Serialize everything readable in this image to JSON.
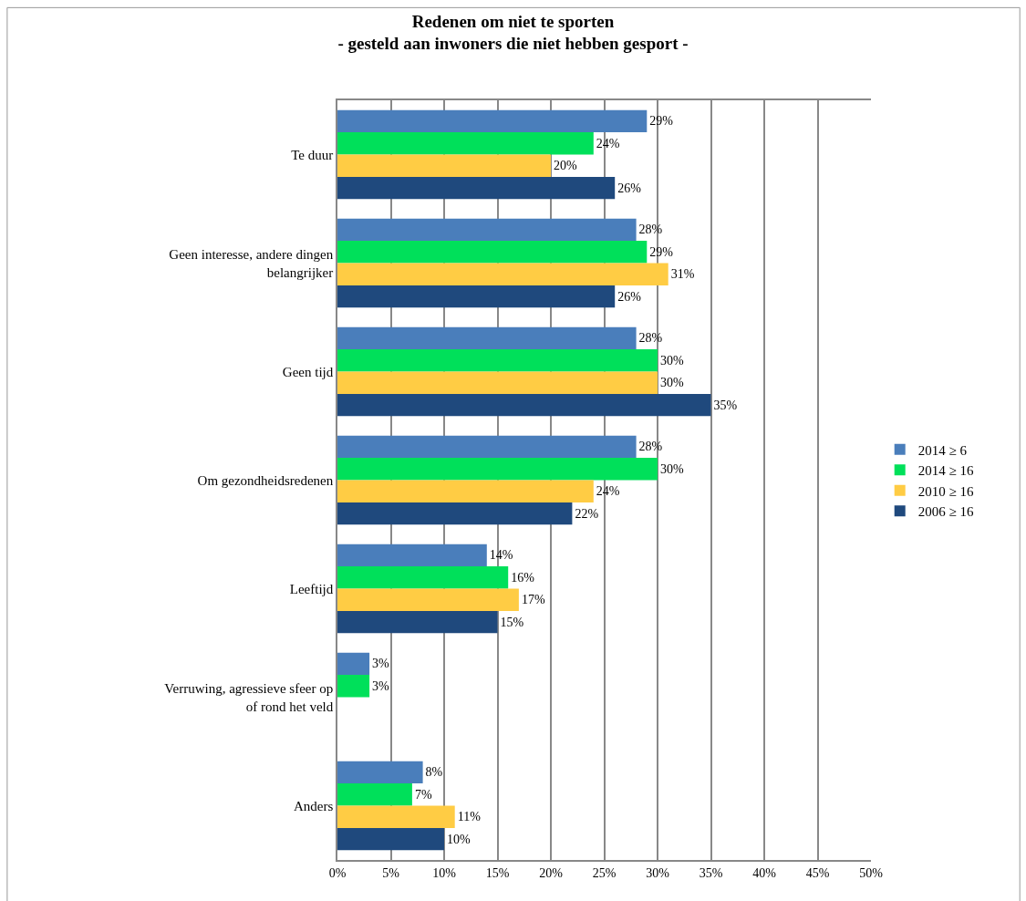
{
  "chart_data": {
    "type": "bar",
    "orientation": "horizontal",
    "title": "Redenen om niet te sporten",
    "subtitle": "- gesteld aan inwoners die niet hebben gesport -",
    "categories": [
      "Te duur",
      "Geen interesse, andere dingen belangrijker",
      "Geen tijd",
      "Om gezondheidsredenen",
      "Leeftijd",
      "Verruwing, agressieve sfeer op of rond het veld",
      "Anders"
    ],
    "series": [
      {
        "name": "2014 ≥ 6",
        "color": "#4a7ebb",
        "values": [
          29,
          28,
          28,
          28,
          14,
          3,
          8
        ],
        "value_labels": [
          "29%",
          "28%",
          "28%",
          "28%",
          "14%",
          "3%",
          "8%"
        ]
      },
      {
        "name": "2014 ≥ 16",
        "color": "#00e05a",
        "values": [
          24,
          29,
          30,
          30,
          16,
          3,
          7
        ],
        "value_labels": [
          "24%",
          "29%",
          "30%",
          "30%",
          "16%",
          "3%",
          "7%"
        ]
      },
      {
        "name": "2010 ≥ 16",
        "color": "#ffcc44",
        "values": [
          20,
          31,
          30,
          24,
          17,
          null,
          11
        ],
        "value_labels": [
          "20%",
          "31%",
          "30%",
          "24%",
          "17%",
          null,
          "11%"
        ]
      },
      {
        "name": "2006 ≥ 16",
        "color": "#1f497d",
        "values": [
          26,
          26,
          35,
          22,
          15,
          null,
          10
        ],
        "value_labels": [
          "26%",
          "26%",
          "35%",
          "22%",
          "15%",
          null,
          "10%"
        ]
      }
    ],
    "xlim": [
      0,
      50
    ],
    "xticks": [
      {
        "value": 0,
        "label": "0%"
      },
      {
        "value": 5,
        "label": "5%"
      },
      {
        "value": 10,
        "label": "10%"
      },
      {
        "value": 15,
        "label": "15%"
      },
      {
        "value": 20,
        "label": "20%"
      },
      {
        "value": 25,
        "label": "25%"
      },
      {
        "value": 30,
        "label": "30%"
      },
      {
        "value": 35,
        "label": "35%"
      },
      {
        "value": 40,
        "label": "40%"
      },
      {
        "value": 45,
        "label": "45%"
      },
      {
        "value": 50,
        "label": "50%"
      }
    ],
    "grid": "x",
    "legend": "right"
  }
}
